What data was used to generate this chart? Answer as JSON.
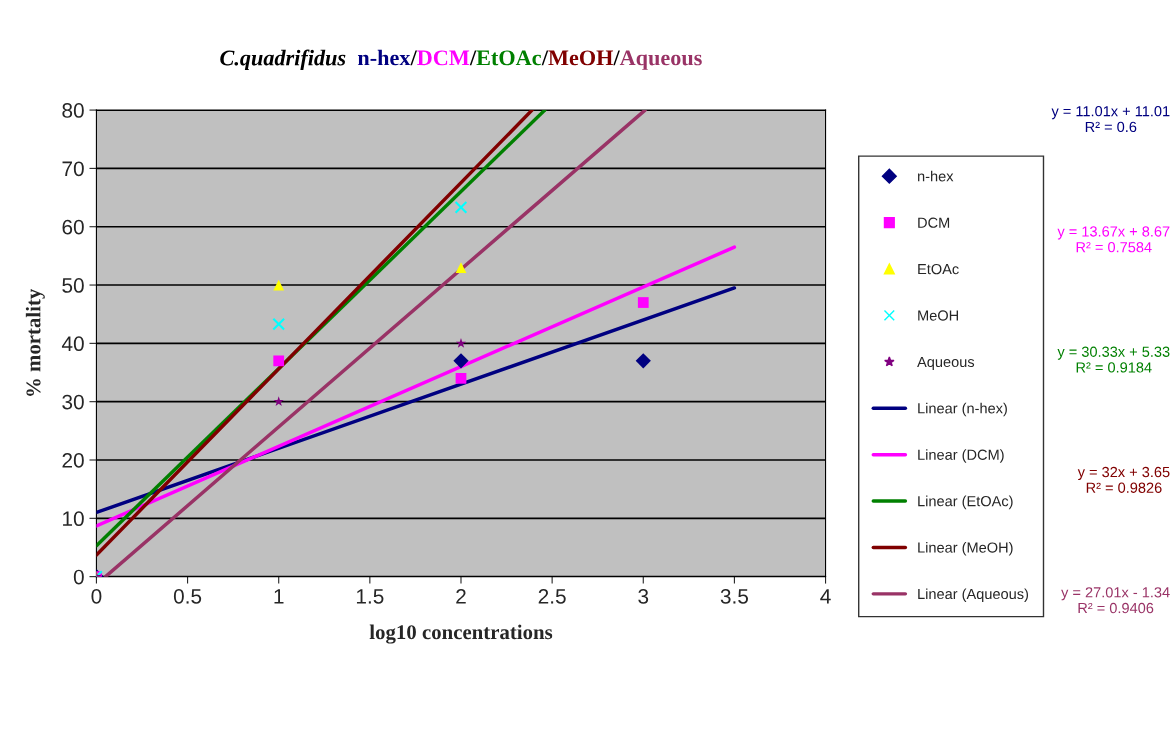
{
  "chart_data": {
    "type": "scatter",
    "title": "C.quadrifidus  n-hex/DCM/EtOAc/MeOH/Aqueous",
    "xlabel": "log10 concentrations",
    "ylabel": "% mortality",
    "xlim": [
      0,
      4
    ],
    "xticks": [
      0,
      0.5,
      1,
      1.5,
      2,
      2.5,
      3,
      3.5,
      4
    ],
    "ylim": [
      0,
      80
    ],
    "yticks": [
      0,
      10,
      20,
      30,
      40,
      50,
      60,
      70,
      80
    ],
    "grid": "y",
    "legend": "right",
    "series": [
      {
        "name": "n-hex",
        "marker": "diamond",
        "color": "#000080",
        "x": [
          0,
          1,
          2,
          3
        ],
        "values": [
          0,
          null,
          37,
          37
        ]
      },
      {
        "name": "DCM",
        "marker": "square",
        "color": "#ff00ff",
        "x": [
          0,
          1,
          2,
          3
        ],
        "values": [
          0,
          37,
          34,
          47
        ]
      },
      {
        "name": "EtOAc",
        "marker": "triangle",
        "color": "#ffff00",
        "x": [
          0,
          1,
          2
        ],
        "values": [
          0,
          50,
          53
        ]
      },
      {
        "name": "MeOH",
        "marker": "cross",
        "color": "#00ffff",
        "x": [
          0,
          1,
          2
        ],
        "values": [
          0,
          43.3,
          63.3
        ]
      },
      {
        "name": "Aqueous",
        "marker": "star",
        "color": "#800080",
        "x": [
          0,
          1,
          2
        ],
        "values": [
          0,
          30,
          40
        ]
      },
      {
        "name": "Linear (n-hex)",
        "type": "line",
        "color": "#000080",
        "x": [
          0,
          3.5
        ],
        "values": [
          11,
          49.5
        ]
      },
      {
        "name": "Linear (DCM)",
        "type": "line",
        "color": "#ff00ff",
        "x": [
          0,
          3.5
        ],
        "values": [
          8.7,
          56.5
        ]
      },
      {
        "name": "Linear (EtOAc)",
        "type": "line",
        "color": "#008000",
        "x": [
          0,
          2.46
        ],
        "values": [
          5.3,
          80
        ]
      },
      {
        "name": "Linear (MeOH)",
        "type": "line",
        "color": "#800000",
        "x": [
          0,
          2.39
        ],
        "values": [
          3.7,
          80
        ]
      },
      {
        "name": "Linear (Aqueous)",
        "type": "line",
        "color": "#993366",
        "x": [
          0.05,
          3.01
        ],
        "values": [
          0,
          80
        ]
      }
    ],
    "annotations": [
      "y = 11.01x + 11.01\nR² = 0.6",
      "y = 13.67x + 8.67\nR² = 0.7584",
      "y = 30.33x + 5.33\nR² = 0.9184",
      "y = 32x + 3.65\nR² = 0.9826",
      "y = 27.01x - 1.34\nR² = 0.9406"
    ]
  }
}
